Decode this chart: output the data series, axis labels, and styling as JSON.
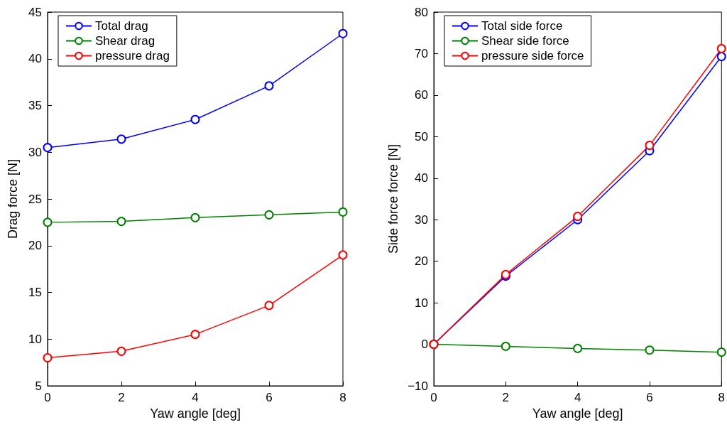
{
  "chart_data": [
    {
      "type": "line",
      "xlabel": "Yaw angle [deg]",
      "ylabel": "Drag force [N]",
      "x": [
        0,
        2,
        4,
        6,
        8
      ],
      "xlim": [
        0,
        8
      ],
      "xticks": [
        0,
        2,
        4,
        6,
        8
      ],
      "ylim": [
        5,
        45
      ],
      "yticks": [
        5,
        10,
        15,
        20,
        25,
        30,
        35,
        40,
        45
      ],
      "grid": false,
      "legend": "top left",
      "marker": "circle",
      "line_style": "solid",
      "series": [
        {
          "name": "Total drag",
          "color": "#0000ff",
          "values": [
            30.5,
            31.4,
            33.5,
            37.1,
            42.7
          ]
        },
        {
          "name": "Shear drag",
          "color": "#008000",
          "values": [
            22.5,
            22.6,
            23.0,
            23.3,
            23.6
          ]
        },
        {
          "name": "pressure drag",
          "color": "#ff0000",
          "values": [
            8.0,
            8.7,
            10.5,
            13.6,
            19.0
          ]
        }
      ]
    },
    {
      "type": "line",
      "xlabel": "Yaw angle [deg]",
      "ylabel": "Side force force [N]",
      "x": [
        0,
        2,
        4,
        6,
        8
      ],
      "xlim": [
        0,
        8
      ],
      "xticks": [
        0,
        2,
        4,
        6,
        8
      ],
      "ylim": [
        -10,
        80
      ],
      "yticks": [
        {
          "value": -10,
          "label": "−10"
        },
        0,
        10,
        20,
        30,
        40,
        50,
        60,
        70,
        80
      ],
      "grid": false,
      "legend": "top left",
      "marker": "circle",
      "line_style": "solid",
      "series": [
        {
          "name": "Total side force",
          "color": "#0000ff",
          "values": [
            0,
            16.4,
            30.0,
            46.6,
            69.3
          ]
        },
        {
          "name": "Shear side force",
          "color": "#008000",
          "values": [
            0,
            -0.5,
            -1.0,
            -1.4,
            -1.9
          ]
        },
        {
          "name": "pressure side force",
          "color": "#ff0000",
          "values": [
            0,
            16.8,
            30.8,
            47.9,
            71.2
          ]
        }
      ]
    }
  ]
}
